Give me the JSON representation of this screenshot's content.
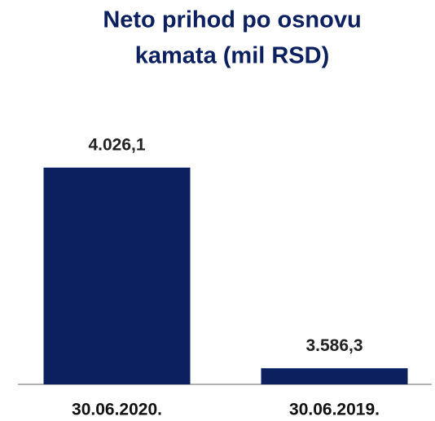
{
  "chart_data": {
    "type": "bar",
    "title": [
      "Neto prihod po osnovu",
      "kamata (mil RSD)"
    ],
    "categories": [
      "30.06.2020.",
      "30.06.2019."
    ],
    "values": [
      4026.1,
      3586.3
    ],
    "value_labels": [
      "4.026,1",
      "3.586,3"
    ],
    "color": "#0c2060",
    "ylim": [
      3551,
      4140
    ]
  }
}
